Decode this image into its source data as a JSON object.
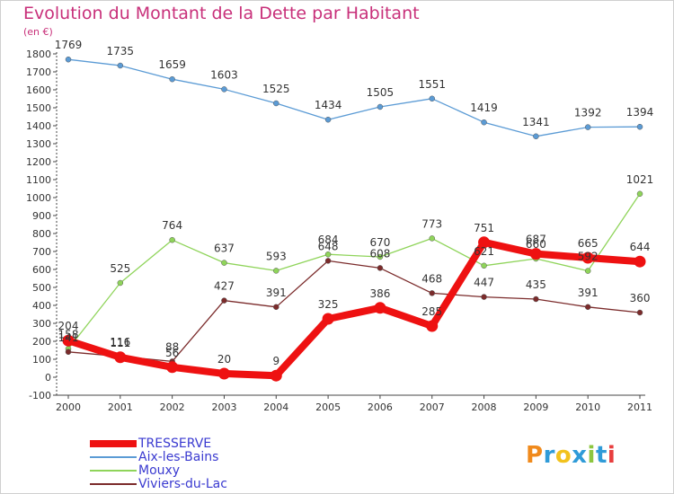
{
  "chart_data": {
    "type": "line",
    "title": "Evolution du Montant de la Dette par Habitant",
    "subtitle": "(en €)",
    "x": [
      "2000",
      "2001",
      "2002",
      "2003",
      "2004",
      "2005",
      "2006",
      "2007",
      "2008",
      "2009",
      "2010",
      "2011"
    ],
    "ylim": [
      -100,
      1800
    ],
    "yticks": [
      -100,
      0,
      100,
      200,
      300,
      400,
      500,
      600,
      700,
      800,
      900,
      1000,
      1100,
      1200,
      1300,
      1400,
      1500,
      1600,
      1700,
      1800
    ],
    "grid": false,
    "legend_position": "bottom-left",
    "series": [
      {
        "name": "Aix-les-Bains",
        "color": "#5b9bd5",
        "values": [
          1769,
          1735,
          1659,
          1603,
          1525,
          1434,
          1505,
          1551,
          1419,
          1341,
          1392,
          1394
        ]
      },
      {
        "name": "Mouxy",
        "color": "#8fd45a",
        "values": [
          158,
          525,
          764,
          637,
          593,
          684,
          670,
          773,
          621,
          660,
          592,
          1021
        ]
      },
      {
        "name": "Viviers-du-Lac",
        "color": "#7b2b2b",
        "values": [
          141,
          116,
          88,
          427,
          391,
          648,
          608,
          468,
          447,
          435,
          391,
          360
        ]
      },
      {
        "name": "TRESSERVE",
        "color": "#ee1111",
        "values": [
          204,
          111,
          56,
          20,
          9,
          325,
          386,
          285,
          751,
          687,
          665,
          644
        ]
      }
    ],
    "legend_order": [
      "TRESSERVE",
      "Aix-les-Bains",
      "Mouxy",
      "Viviers-du-Lac"
    ]
  },
  "brand_letters": [
    "P",
    "r",
    "o",
    "x",
    "i",
    "t",
    "i"
  ]
}
